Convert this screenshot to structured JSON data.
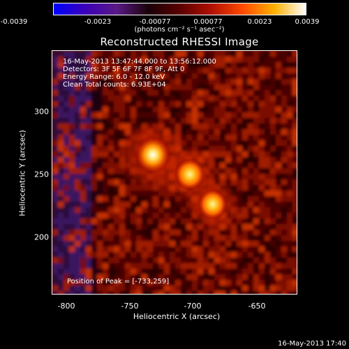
{
  "colorbar": {
    "ticks": [
      "-0.0039",
      "-0.0023",
      "-0.00077",
      "0.00077",
      "0.0023",
      "0.0039"
    ],
    "units": "(photons cm⁻² s⁻¹ asec⁻²)",
    "colors": [
      "#0000ff",
      "#3b00b8",
      "#5a1a86",
      "#1a0008",
      "#5a0000",
      "#b01000",
      "#ff4a00",
      "#ffb000",
      "#ffffff"
    ]
  },
  "plot": {
    "title": "Reconstructed RHESSI Image",
    "info": [
      "16-May-2013 13:47:44.000 to 13:56:12.000",
      "Detectors: 3F 5F 6F 7F 8F 9F, Att 0",
      "Energy Range: 6.0 - 12.0 keV",
      "Clean     Total counts: 6.93E+04"
    ],
    "peak_label": "Position of Peak = [-733,259]",
    "x_axis": {
      "title": "Heliocentric X (arcsec)",
      "ticks": [
        "-800",
        "-750",
        "-700",
        "-650"
      ],
      "tick_values": [
        -800,
        -750,
        -700,
        -650
      ],
      "range": [
        -812,
        -620
      ]
    },
    "y_axis": {
      "title": "Heliocentric Y (arcsec)",
      "ticks": [
        "200",
        "250",
        "300"
      ],
      "tick_values": [
        200,
        250,
        300
      ],
      "range": [
        152,
        339
      ]
    },
    "sources": [
      {
        "x": -733,
        "y": 259,
        "intensity": 1.0
      },
      {
        "x": -704,
        "y": 244,
        "intensity": 0.75
      },
      {
        "x": -686,
        "y": 221,
        "intensity": 0.7
      }
    ]
  },
  "footer": {
    "timestamp": "16-May-2013 17:40"
  }
}
